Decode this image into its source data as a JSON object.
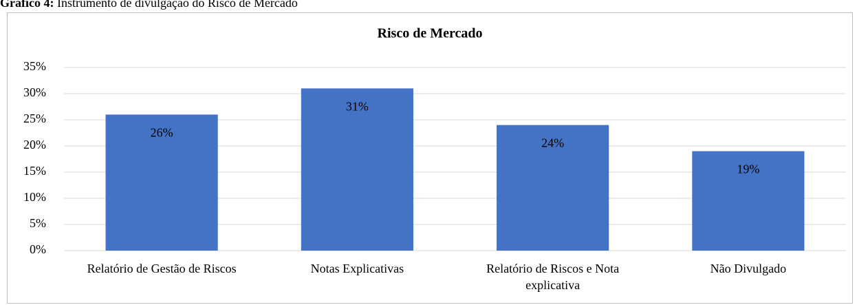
{
  "caption": {
    "label": "Gráfico 4:",
    "text": "Instrumento de divulgação do Risco de Mercado"
  },
  "chart_data": {
    "type": "bar",
    "title": "Risco de Mercado",
    "categories": [
      "Relatório de Gestão de Riscos",
      "Notas Explicativas",
      "Relatório de Riscos  e Nota explicativa",
      "Não Divulgado"
    ],
    "values": [
      26,
      31,
      24,
      19
    ],
    "value_labels": [
      "26%",
      "31%",
      "24%",
      "19%"
    ],
    "color": "#4472c4",
    "ylim": [
      0,
      35
    ],
    "yticks": [
      {
        "value": 0,
        "label": "0%"
      },
      {
        "value": 5,
        "label": "5%"
      },
      {
        "value": 10,
        "label": "10%"
      },
      {
        "value": 15,
        "label": "15%"
      },
      {
        "value": 20,
        "label": "20%"
      },
      {
        "value": 25,
        "label": "25%"
      },
      {
        "value": 30,
        "label": "30%"
      },
      {
        "value": 35,
        "label": "35%"
      }
    ],
    "grid": true
  }
}
